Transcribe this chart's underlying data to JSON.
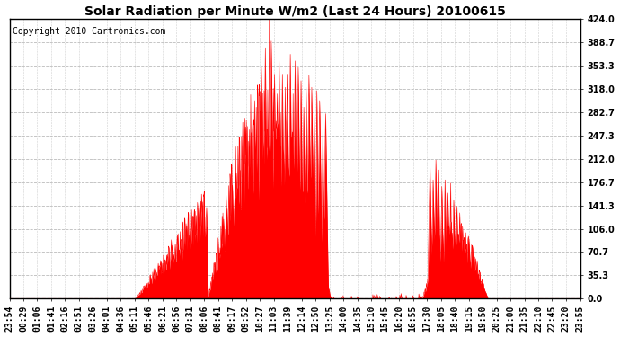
{
  "title": "Solar Radiation per Minute W/m2 (Last 24 Hours) 20100615",
  "copyright": "Copyright 2010 Cartronics.com",
  "yticks": [
    0.0,
    35.3,
    70.7,
    106.0,
    141.3,
    176.7,
    212.0,
    247.3,
    282.7,
    318.0,
    353.3,
    388.7,
    424.0
  ],
  "ymax": 424.0,
  "ymin": 0.0,
  "fill_color": "#FF0000",
  "line_color": "#FF0000",
  "bg_color": "#FFFFFF",
  "grid_color": "#BBBBBB",
  "dashed_line_color": "#FF0000",
  "title_fontsize": 10,
  "copyright_fontsize": 7,
  "tick_fontsize": 7,
  "xtick_labels": [
    "23:54",
    "00:29",
    "01:06",
    "01:41",
    "02:16",
    "02:51",
    "03:26",
    "04:01",
    "04:36",
    "05:11",
    "05:46",
    "06:21",
    "06:56",
    "07:31",
    "08:06",
    "08:41",
    "09:17",
    "09:52",
    "10:27",
    "11:03",
    "11:39",
    "12:14",
    "12:50",
    "13:25",
    "14:00",
    "14:35",
    "15:10",
    "15:45",
    "16:20",
    "16:55",
    "17:30",
    "18:05",
    "18:40",
    "19:15",
    "19:50",
    "20:25",
    "21:00",
    "21:35",
    "22:10",
    "22:45",
    "23:20",
    "23:55"
  ]
}
